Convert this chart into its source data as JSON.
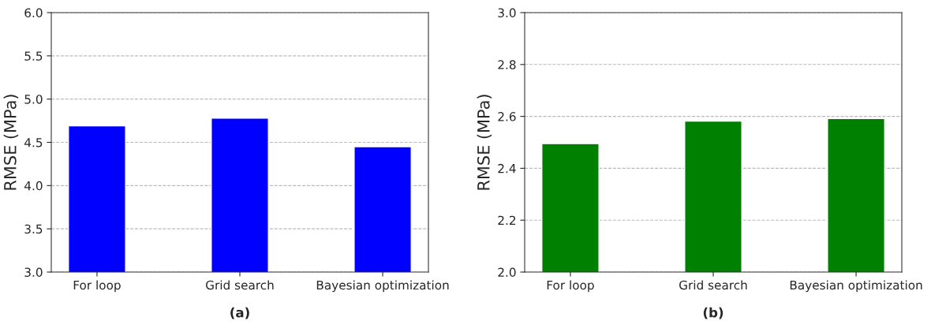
{
  "chart_data": [
    {
      "type": "bar",
      "xlabel": "(a)",
      "ylabel": "RMSE (MPa)",
      "categories": [
        "For loop",
        "Grid search",
        "Bayesian optimization"
      ],
      "values": [
        4.69,
        4.78,
        4.45
      ],
      "color": "#0000ff",
      "ylim": [
        3.0,
        6.0
      ],
      "yticks": [
        {
          "value": 3.0,
          "label": "3.0"
        },
        {
          "value": 3.5,
          "label": "3.5"
        },
        {
          "value": 4.0,
          "label": "4.0"
        },
        {
          "value": 4.5,
          "label": "4.5"
        },
        {
          "value": 5.0,
          "label": "5.0"
        },
        {
          "value": 5.5,
          "label": "5.5"
        },
        {
          "value": 6.0,
          "label": "6.0"
        }
      ],
      "grid": "y"
    },
    {
      "type": "bar",
      "xlabel": "(b)",
      "ylabel": "RMSE (MPa)",
      "categories": [
        "For loop",
        "Grid search",
        "Bayesian optimization"
      ],
      "values": [
        2.495,
        2.582,
        2.592
      ],
      "color": "#008000",
      "ylim": [
        2.0,
        3.0
      ],
      "yticks": [
        {
          "value": 2.0,
          "label": "2.0"
        },
        {
          "value": 2.2,
          "label": "2.2"
        },
        {
          "value": 2.4,
          "label": "2.4"
        },
        {
          "value": 2.6,
          "label": "2.6"
        },
        {
          "value": 2.8,
          "label": "2.8"
        },
        {
          "value": 3.0,
          "label": "3.0"
        }
      ],
      "grid": "y"
    }
  ]
}
